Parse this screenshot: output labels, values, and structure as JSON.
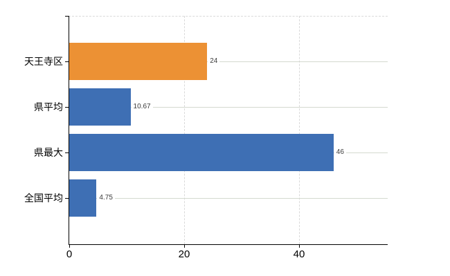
{
  "chart_data": {
    "type": "bar",
    "orientation": "horizontal",
    "title": "",
    "xlabel": "",
    "ylabel": "",
    "categories": [
      "天王寺区",
      "県平均",
      "県最大",
      "全国平均"
    ],
    "values": [
      24,
      10.67,
      46,
      4.75
    ],
    "value_labels": [
      "24",
      "10.67",
      "46",
      "4.75"
    ],
    "series": [
      {
        "name": "",
        "values": [
          24,
          10.67,
          46,
          4.75
        ]
      }
    ],
    "bar_colors": [
      "#EC9134",
      "#3E6FB4",
      "#3E6FB4",
      "#3E6FB4"
    ],
    "highlight_category": "天王寺区",
    "x_ticks": [
      0,
      20,
      40
    ],
    "x_tick_labels": [
      "0",
      "20",
      "40"
    ],
    "xlim": [
      0,
      55.4
    ],
    "grid": true,
    "legend": "none",
    "colors": {
      "highlight_bar": "#EC9134",
      "default_bar": "#3E6FB4",
      "grid_horizontal": "#D4D9CF",
      "grid_vertical": "#D9D9D9",
      "plot_top_border": "#D9D9D9",
      "axis": "#000000",
      "value_label_text": "#3A3A3A",
      "tick_label_text": "#000000",
      "background": "#FFFFFF"
    }
  }
}
